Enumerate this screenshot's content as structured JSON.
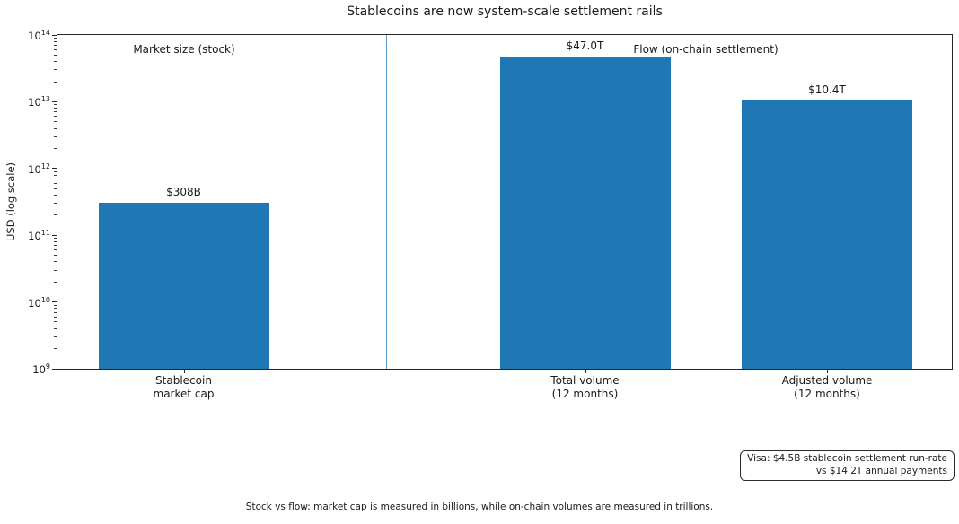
{
  "title": "Stablecoins are now system-scale settlement rails",
  "y_axis": {
    "label": "USD (log scale)",
    "tick_exponents": [
      9,
      10,
      11,
      12,
      13,
      14
    ]
  },
  "annotations": {
    "market_size": "Market size (stock)",
    "flow": "Flow (on-chain settlement)"
  },
  "visa_note": {
    "line1": "Visa: $4.5B stablecoin settlement run-rate",
    "line2": "vs $14.2T annual payments"
  },
  "caption": "Stock vs flow: market cap is measured in billions, while on-chain volumes are measured in trillions.",
  "chart_data": {
    "type": "bar",
    "title": "Stablecoins are now system-scale settlement rails",
    "ylabel": "USD (log scale)",
    "xlabel": "",
    "yscale": "log",
    "ylim": [
      1000000000,
      100000000000000
    ],
    "grid": false,
    "legend": "none",
    "categories": [
      "Stablecoin\nmarket cap",
      "Total volume\n(12 months)",
      "Adjusted volume\n(12 months)"
    ],
    "values": [
      308000000000,
      47000000000000,
      10400000000000
    ],
    "bar_labels": [
      "$308B",
      "$47.0T",
      "$10.4T"
    ],
    "group_annotations": [
      "Market size (stock)",
      "Flow (on-chain settlement)"
    ],
    "bar_color": "#1f77b4",
    "divider_color": "#5b9ec9",
    "axis_color": "#262626",
    "notes": [
      "Visa: $4.5B stablecoin settlement run-rate vs $14.2T annual payments"
    ]
  }
}
